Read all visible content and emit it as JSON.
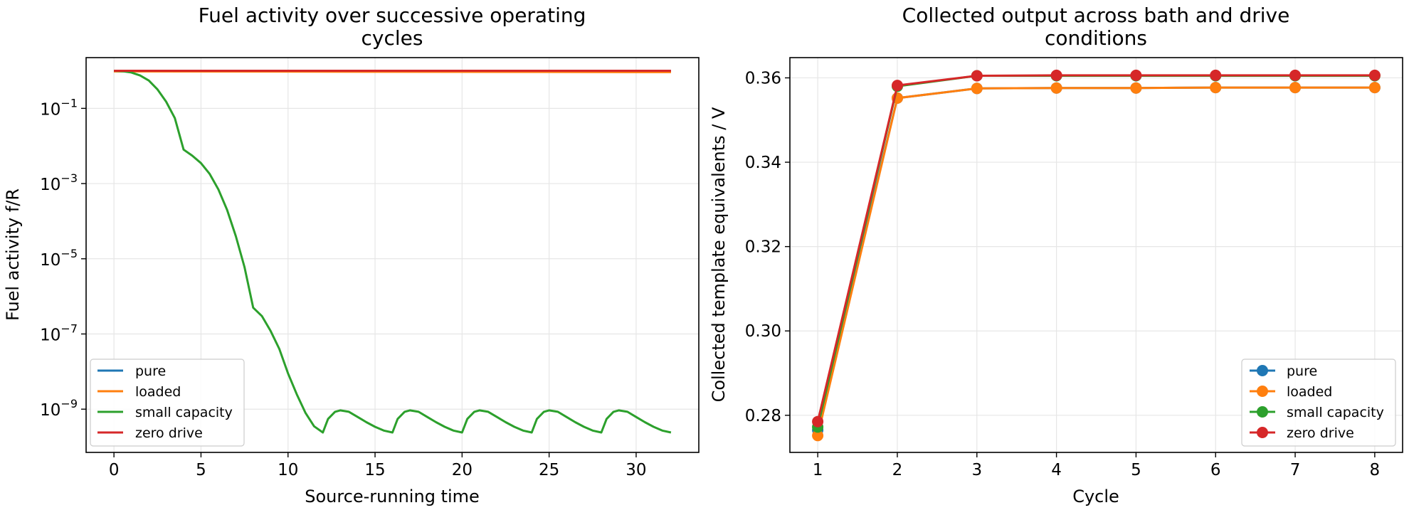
{
  "colors": {
    "pure": "#1f77b4",
    "loaded": "#ff7f0e",
    "small_capacity": "#2ca02c",
    "zero_drive": "#d62728"
  },
  "chart_data": [
    {
      "type": "line",
      "title_lines": [
        "Fuel activity over successive operating",
        "cycles"
      ],
      "xlabel": "Source-running time",
      "ylabel": "Fuel activity f/R",
      "xlim": [
        -1.6,
        33.6
      ],
      "ylim_log10": [
        -10.15,
        0.35
      ],
      "y_scale": "log",
      "xticks": [
        0,
        5,
        10,
        15,
        20,
        25,
        30
      ],
      "yticks": [
        {
          "exp": -1,
          "label": "10",
          "sup": "−1"
        },
        {
          "exp": -3,
          "label": "10",
          "sup": "−3"
        },
        {
          "exp": -5,
          "label": "10",
          "sup": "−5"
        },
        {
          "exp": -7,
          "label": "10",
          "sup": "−7"
        },
        {
          "exp": -9,
          "label": "10",
          "sup": "−9"
        }
      ],
      "grid": true,
      "legend_position": "lower-left",
      "series": [
        {
          "name": "pure",
          "color": "#1f77b4",
          "points": [
            [
              0,
              0.98
            ],
            [
              32,
              0.98
            ]
          ]
        },
        {
          "name": "loaded",
          "color": "#ff7f0e",
          "points": [
            [
              0,
              0.96
            ],
            [
              32,
              0.92
            ]
          ]
        },
        {
          "name": "small capacity",
          "color": "#2ca02c",
          "points": [
            [
              0,
              1.0
            ],
            [
              0.5,
              0.97
            ],
            [
              1,
              0.9
            ],
            [
              1.5,
              0.75
            ],
            [
              2,
              0.55
            ],
            [
              2.5,
              0.32
            ],
            [
              3,
              0.15
            ],
            [
              3.5,
              0.055
            ],
            [
              4,
              0.008
            ],
            [
              4.5,
              0.0055
            ],
            [
              5,
              0.0035
            ],
            [
              5.5,
              0.0018
            ],
            [
              6,
              0.0007
            ],
            [
              6.5,
              0.0002
            ],
            [
              7,
              4e-05
            ],
            [
              7.5,
              6e-06
            ],
            [
              8,
              5e-07
            ],
            [
              8.5,
              3e-07
            ],
            [
              9,
              1.2e-07
            ],
            [
              9.5,
              4e-08
            ],
            [
              10,
              9e-09
            ],
            [
              10.5,
              2.5e-09
            ],
            [
              11,
              8e-10
            ],
            [
              11.5,
              3.5e-10
            ],
            [
              12,
              2.4e-10
            ],
            [
              12.3,
              5.5e-10
            ],
            [
              12.7,
              8.5e-10
            ],
            [
              13,
              9.3e-10
            ],
            [
              13.5,
              8.5e-10
            ],
            [
              14,
              6.2e-10
            ],
            [
              14.5,
              4.5e-10
            ],
            [
              15,
              3.4e-10
            ],
            [
              15.5,
              2.7e-10
            ],
            [
              16,
              2.4e-10
            ],
            [
              16.3,
              5.5e-10
            ],
            [
              16.7,
              8.5e-10
            ],
            [
              17,
              9.3e-10
            ],
            [
              17.5,
              8.5e-10
            ],
            [
              18,
              6.2e-10
            ],
            [
              18.5,
              4.5e-10
            ],
            [
              19,
              3.4e-10
            ],
            [
              19.5,
              2.7e-10
            ],
            [
              20,
              2.4e-10
            ],
            [
              20.3,
              5.5e-10
            ],
            [
              20.7,
              8.5e-10
            ],
            [
              21,
              9.3e-10
            ],
            [
              21.5,
              8.5e-10
            ],
            [
              22,
              6.2e-10
            ],
            [
              22.5,
              4.5e-10
            ],
            [
              23,
              3.4e-10
            ],
            [
              23.5,
              2.7e-10
            ],
            [
              24,
              2.4e-10
            ],
            [
              24.3,
              5.5e-10
            ],
            [
              24.7,
              8.5e-10
            ],
            [
              25,
              9.3e-10
            ],
            [
              25.5,
              8.5e-10
            ],
            [
              26,
              6.2e-10
            ],
            [
              26.5,
              4.5e-10
            ],
            [
              27,
              3.4e-10
            ],
            [
              27.5,
              2.7e-10
            ],
            [
              28,
              2.4e-10
            ],
            [
              28.3,
              5.5e-10
            ],
            [
              28.7,
              8.5e-10
            ],
            [
              29,
              9.3e-10
            ],
            [
              29.5,
              8.5e-10
            ],
            [
              30,
              6.2e-10
            ],
            [
              30.5,
              4.5e-10
            ],
            [
              31,
              3.4e-10
            ],
            [
              31.5,
              2.7e-10
            ],
            [
              32,
              2.4e-10
            ]
          ]
        },
        {
          "name": "zero drive",
          "color": "#d62728",
          "points": [
            [
              0,
              1.0
            ],
            [
              32,
              1.0
            ]
          ]
        }
      ]
    },
    {
      "type": "line",
      "markers": true,
      "title_lines": [
        "Collected output across bath and drive",
        "conditions"
      ],
      "xlabel": "Cycle",
      "ylabel": "Collected template equivalents / V",
      "xlim": [
        0.65,
        8.35
      ],
      "ylim": [
        0.2712,
        0.3648
      ],
      "xticks": [
        1,
        2,
        3,
        4,
        5,
        6,
        7,
        8
      ],
      "yticks": [
        0.28,
        0.3,
        0.32,
        0.34,
        0.36
      ],
      "ytick_labels": [
        "0.28",
        "0.30",
        "0.32",
        "0.34",
        "0.36"
      ],
      "grid": true,
      "legend_position": "lower-right",
      "x": [
        1,
        2,
        3,
        4,
        5,
        6,
        7,
        8
      ],
      "series": [
        {
          "name": "pure",
          "color": "#1f77b4",
          "values": [
            0.2765,
            0.3552,
            0.3575,
            0.3576,
            0.3576,
            0.3577,
            0.3577,
            0.3577
          ]
        },
        {
          "name": "loaded",
          "color": "#ff7f0e",
          "values": [
            0.2752,
            0.3552,
            0.3575,
            0.3576,
            0.3576,
            0.3577,
            0.3577,
            0.3577
          ]
        },
        {
          "name": "small capacity",
          "color": "#2ca02c",
          "values": [
            0.2772,
            0.358,
            0.3605,
            0.3605,
            0.3605,
            0.3605,
            0.3605,
            0.3605
          ]
        },
        {
          "name": "zero drive",
          "color": "#d62728",
          "values": [
            0.2785,
            0.3582,
            0.3605,
            0.3606,
            0.3606,
            0.3606,
            0.3606,
            0.3606
          ]
        }
      ]
    }
  ]
}
